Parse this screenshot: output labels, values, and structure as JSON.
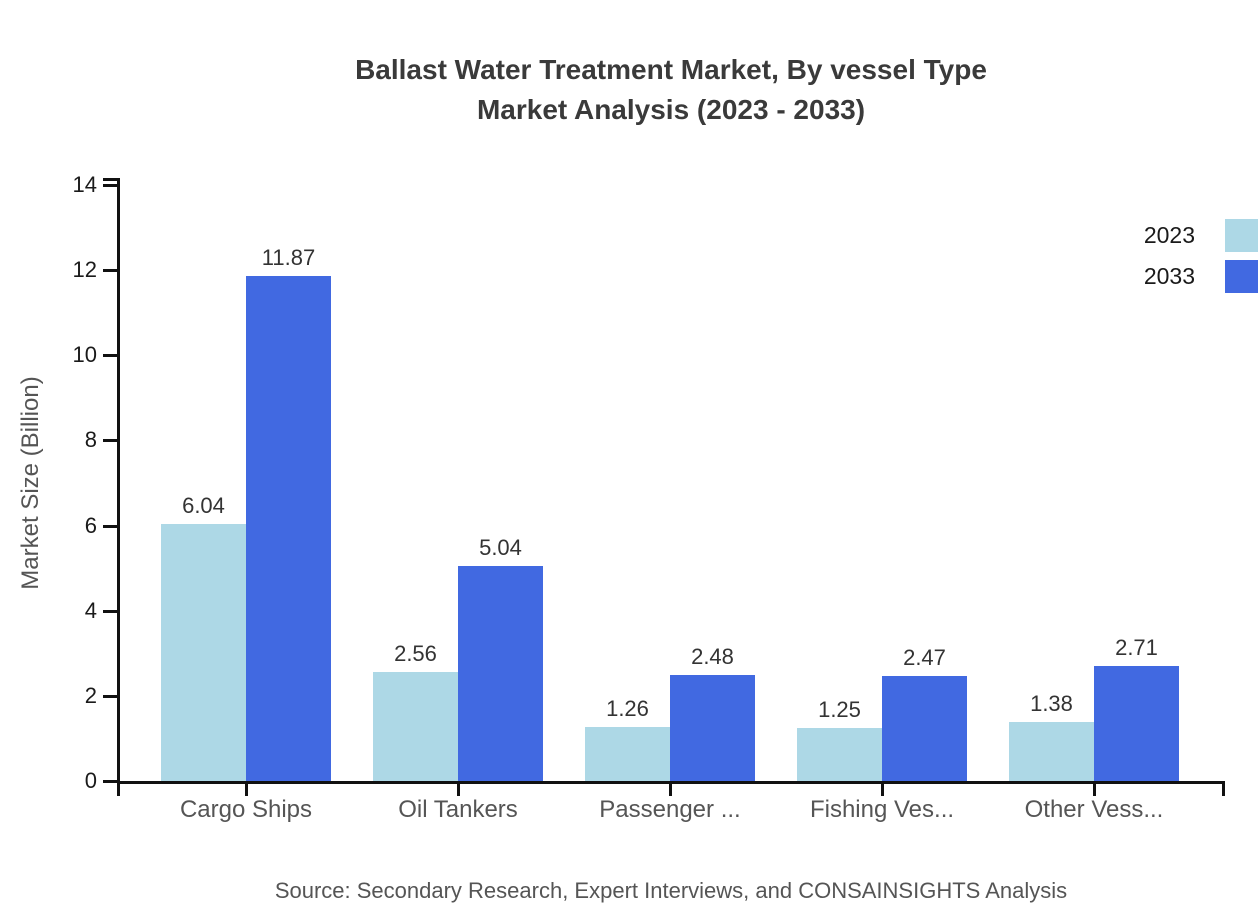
{
  "title": {
    "line1": "Ballast Water Treatment Market, By vessel Type",
    "line2": "Market Analysis (2023 - 2033)"
  },
  "chart_data": {
    "type": "bar",
    "title": "Ballast Water Treatment Market, By vessel Type Market Analysis (2023 - 2033)",
    "categories": [
      "Cargo Ships",
      "Oil Tankers",
      "Passenger ...",
      "Fishing Ves...",
      "Other Vess..."
    ],
    "series": [
      {
        "name": "2023",
        "color": "#ADD8E6",
        "values": [
          6.04,
          2.56,
          1.26,
          1.25,
          1.38
        ]
      },
      {
        "name": "2033",
        "color": "#4169E1",
        "values": [
          11.87,
          5.04,
          2.48,
          2.47,
          2.71
        ]
      }
    ],
    "xlabel": "",
    "ylabel": "Market Size (Billion)",
    "ylim": [
      0,
      14
    ],
    "yticks": [
      0,
      2,
      4,
      6,
      8,
      10,
      12,
      14
    ],
    "grid": false,
    "legend_position": "top-right",
    "value_labels": true
  },
  "source": "Source: Secondary Research, Expert Interviews, and CONSAINSIGHTS Analysis",
  "colors": {
    "series_2023": "#ADD8E6",
    "series_2033": "#4169E1",
    "axis": "#111111",
    "title_text": "#3a3a3a",
    "muted_text": "#555555",
    "value_label_text": "#333333",
    "background": "#ffffff"
  }
}
